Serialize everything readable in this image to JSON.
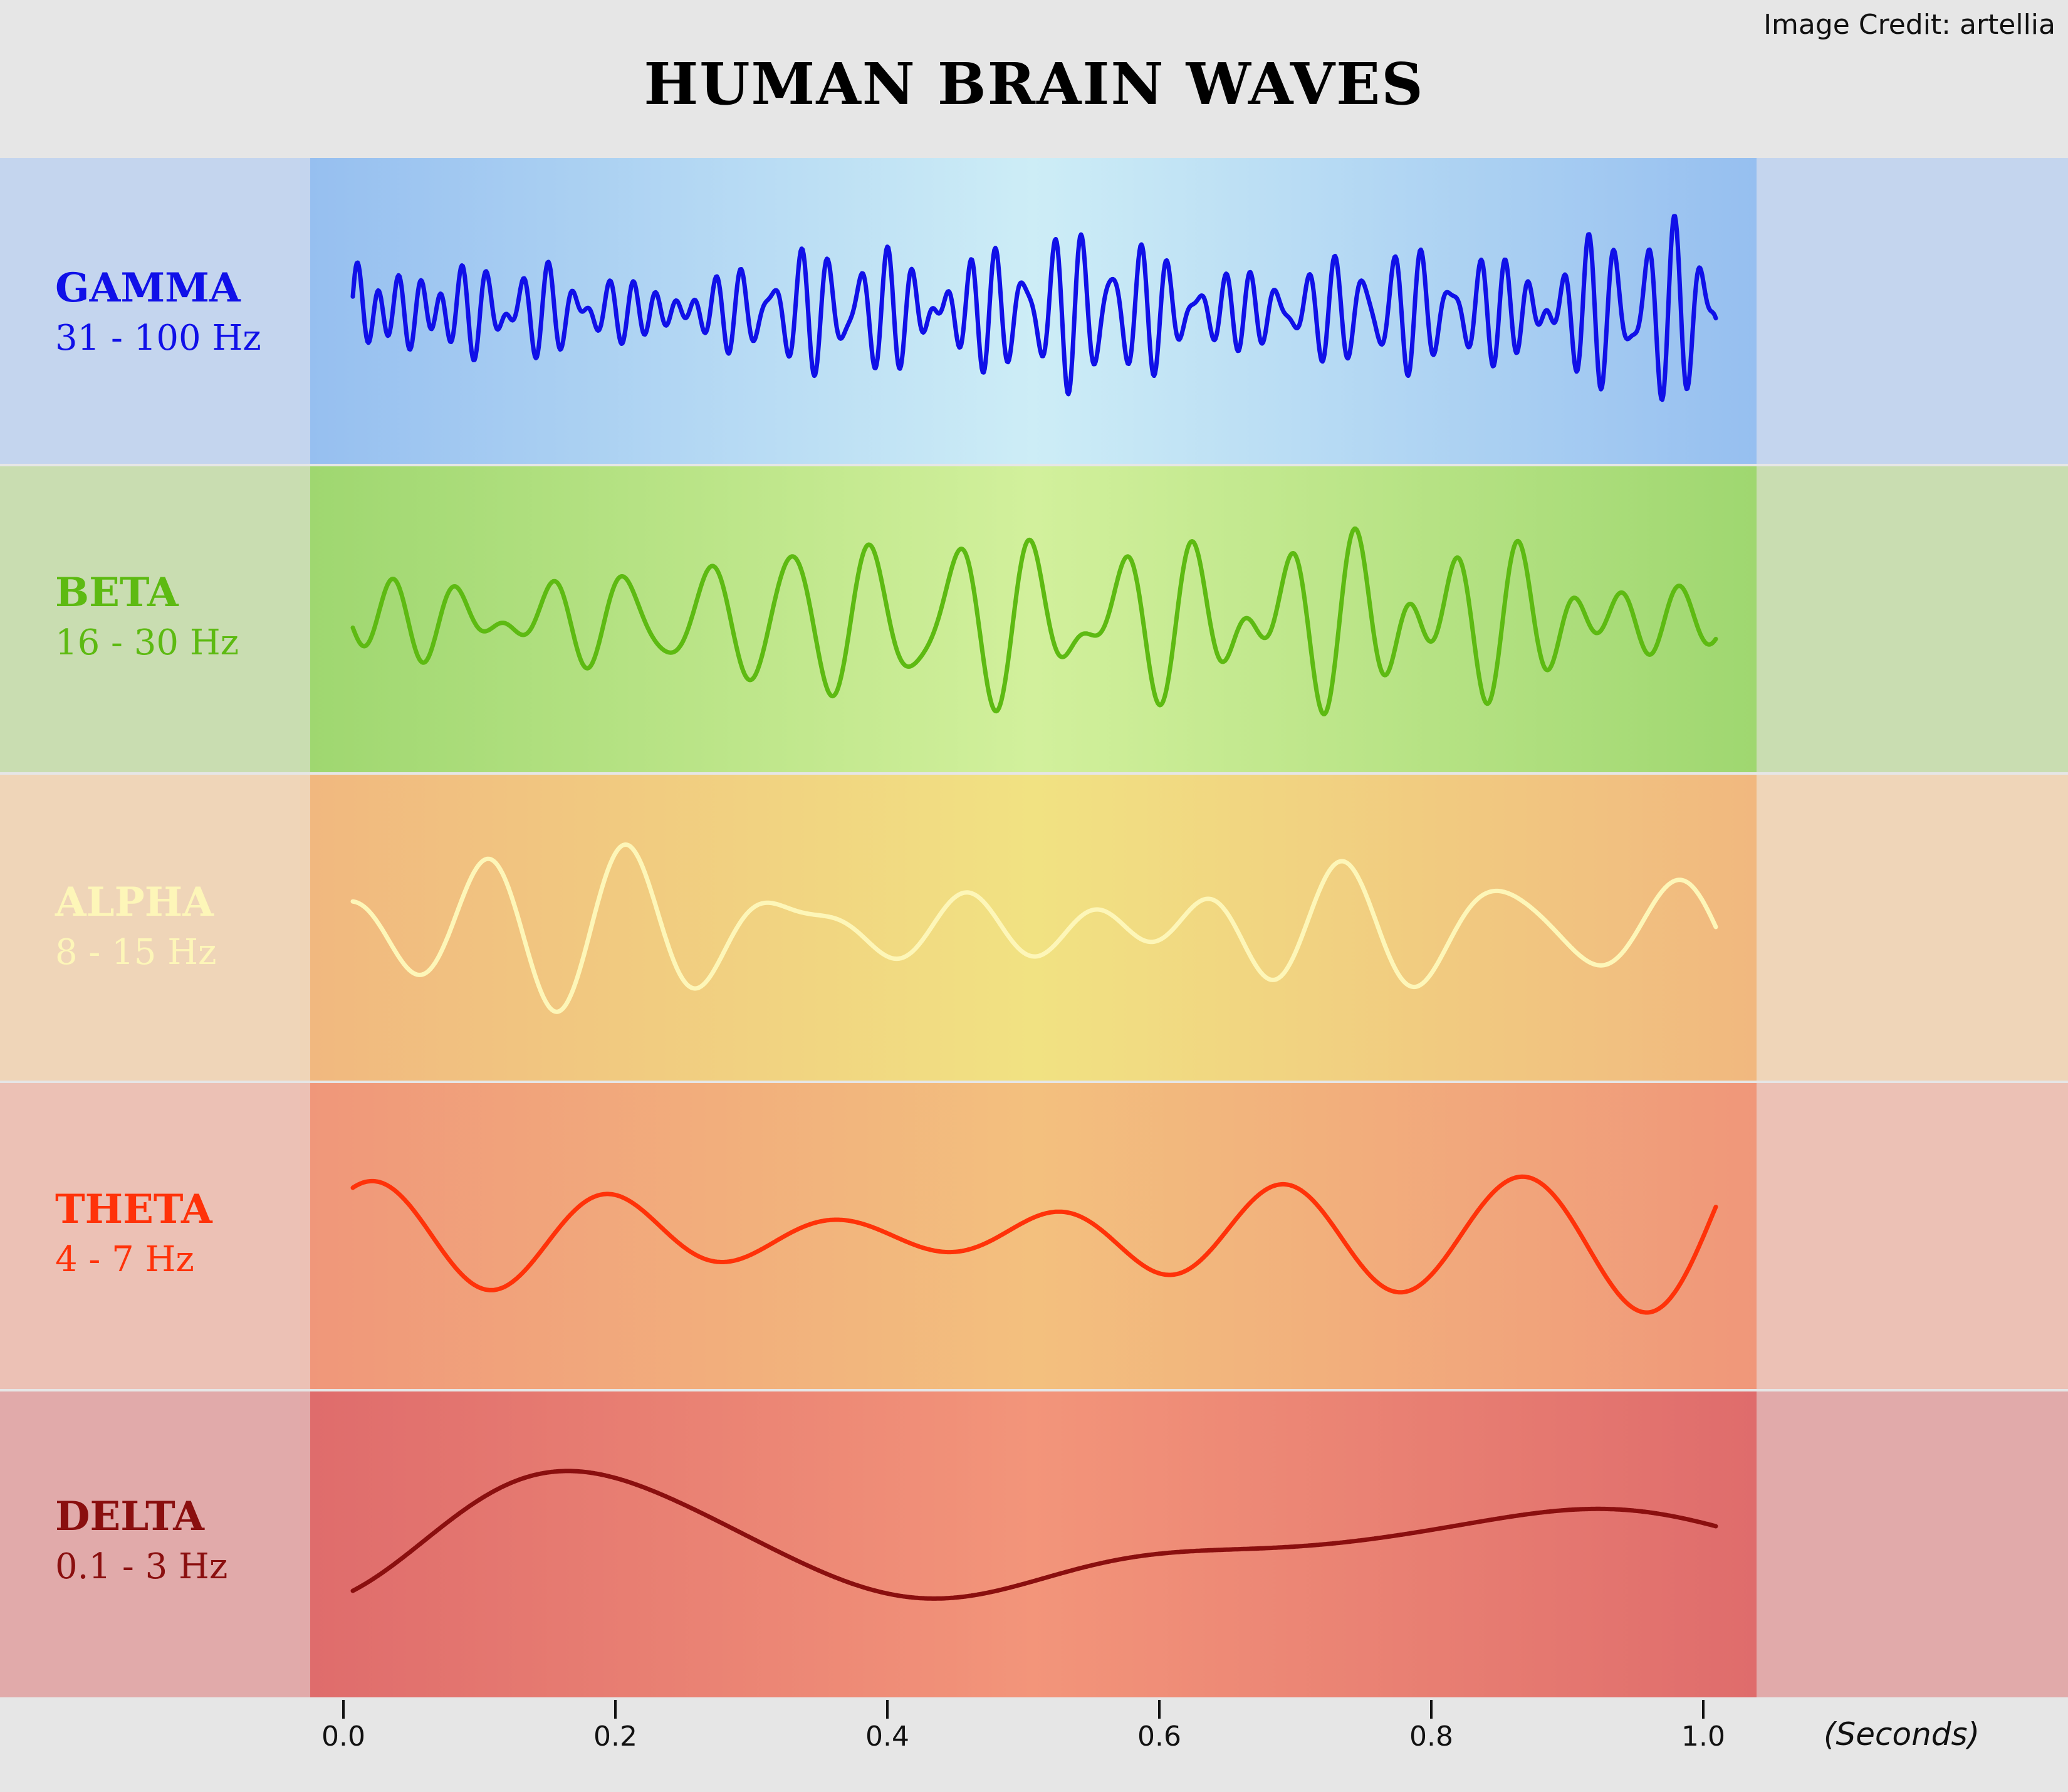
{
  "title": "HUMAN BRAIN WAVES",
  "credit": "Image Credit: artellia",
  "axis": {
    "unit": "(Seconds)",
    "ticks": [
      {
        "value": 0.0,
        "label": "0.0"
      },
      {
        "value": 0.2,
        "label": "0.2"
      },
      {
        "value": 0.4,
        "label": "0.4"
      },
      {
        "value": 0.6,
        "label": "0.6"
      },
      {
        "value": 0.8,
        "label": "0.8"
      },
      {
        "value": 1.0,
        "label": "1.0"
      }
    ]
  },
  "bands": [
    {
      "name": "GAMMA",
      "range": "31 - 100 Hz",
      "color": "#1010e8",
      "side": "#c4d5ee",
      "edge": "#96bff0",
      "center": "#cdedf6",
      "freq_hz": 52,
      "amplitude": 0.62,
      "stroke": 7
    },
    {
      "name": "BETA",
      "range": "16 - 30 Hz",
      "color": "#5dba12",
      "side": "#c9ddb1",
      "edge": "#9fd770",
      "center": "#d2f09c",
      "freq_hz": 22,
      "amplitude": 0.62,
      "stroke": 7
    },
    {
      "name": "ALPHA",
      "range": "8 - 15 Hz",
      "color": "#fdf6b8",
      "side": "#efd5b8",
      "edge": "#f1b87f",
      "center": "#f1e282",
      "freq_hz": 10,
      "amplitude": 0.55,
      "stroke": 7
    },
    {
      "name": "THETA",
      "range": "4 - 7 Hz",
      "color": "#ff3209",
      "side": "#ecc1b5",
      "edge": "#f0977a",
      "center": "#f3c07e",
      "freq_hz": 5.5,
      "amplitude": 0.5,
      "stroke": 7
    },
    {
      "name": "DELTA",
      "range": "0.1 - 3 Hz",
      "color": "#8a0f0f",
      "side": "#e1aaaa",
      "edge": "#df6c6c",
      "center": "#f3957a",
      "freq_hz": 2,
      "amplitude": 0.48,
      "stroke": 7
    }
  ]
}
